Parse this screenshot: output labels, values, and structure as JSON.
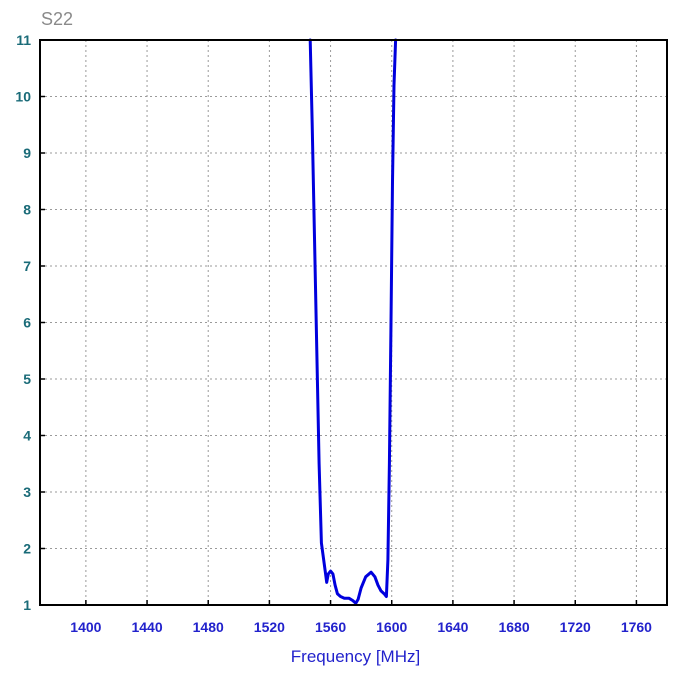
{
  "chart_data": {
    "type": "line",
    "title": "S22",
    "xlabel": "Frequency [MHz]",
    "ylabel": "",
    "xlim": [
      1370,
      1780
    ],
    "ylim": [
      1,
      11
    ],
    "x_ticks": [
      1400,
      1440,
      1480,
      1520,
      1560,
      1600,
      1640,
      1680,
      1720,
      1760
    ],
    "y_ticks": [
      1,
      2,
      3,
      4,
      5,
      6,
      7,
      8,
      9,
      10,
      11
    ],
    "x_tick_labels": [
      "1400",
      "1440",
      "1480",
      "1520",
      "1560",
      "1600",
      "1640",
      "1680",
      "1720",
      "1760"
    ],
    "y_tick_labels": [
      "1",
      "2",
      "3",
      "4",
      "5",
      "6",
      "7",
      "8",
      "9",
      "10",
      "11"
    ],
    "grid": true,
    "series": [
      {
        "color": "#0000dd",
        "x": [
          1546.7,
          1548.0,
          1549.5,
          1551.0,
          1552.5,
          1554.0,
          1555.0,
          1556.5,
          1557.5,
          1558.5,
          1560.0,
          1561.5,
          1563.0,
          1564.5,
          1566.5,
          1569.0,
          1572.0,
          1574.5,
          1576.5,
          1578.0,
          1580.0,
          1583.0,
          1586.5,
          1589.0,
          1591.0,
          1593.0,
          1595.0,
          1596.5,
          1597.5,
          1598.5,
          1599.5,
          1600.5,
          1601.5,
          1602.5
        ],
        "y": [
          11,
          9.5,
          7.5,
          5.5,
          3.5,
          2.1,
          1.9,
          1.6,
          1.4,
          1.55,
          1.6,
          1.55,
          1.35,
          1.2,
          1.15,
          1.12,
          1.12,
          1.08,
          1.03,
          1.1,
          1.3,
          1.5,
          1.58,
          1.5,
          1.35,
          1.25,
          1.2,
          1.15,
          1.8,
          3.5,
          6.0,
          8.5,
          10.2,
          11
        ]
      }
    ]
  }
}
